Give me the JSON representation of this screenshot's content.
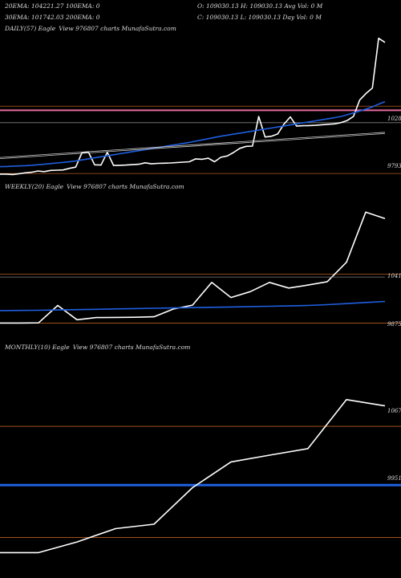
{
  "header": {
    "row1_left": "20EMA: 104221.27 100EMA: 0",
    "row1_right": "O: 109030.13 H: 109030.13 Avg Vol: 0  M",
    "row2_left": "30EMA: 101742.03 200EMA: 0",
    "row2_right": "C: 109030.13 L: 109030.13 Day Vol: 0  M"
  },
  "colors": {
    "background": "#000000",
    "price": "#ffffff",
    "ema_blue": "#1f5fe0",
    "ema_white": "#c8c8c8",
    "level_line": "#b85c1e",
    "pink_line": "#e86aa0",
    "gray_line": "#808080"
  },
  "chart_data": [
    {
      "type": "line",
      "panel": "daily",
      "label": "DAILY(57) Eagle",
      "label_extra": "View  976807 charts MunafaSutra.com",
      "y_tick_labels": [
        "1028",
        "9793"
      ],
      "series": [
        {
          "role": "price",
          "values": [
            97900,
            97900,
            97880,
            97920,
            97960,
            97990,
            98050,
            98020,
            98080,
            98090,
            98100,
            98180,
            98240,
            98950,
            98970,
            98350,
            98340,
            98960,
            98320,
            98330,
            98340,
            98360,
            98380,
            98450,
            98400,
            98420,
            98430,
            98440,
            98460,
            98480,
            98500,
            98640,
            98620,
            98670,
            98500,
            98720,
            98780,
            98950,
            99150,
            99250,
            99260,
            100700,
            99700,
            99740,
            99850,
            100330,
            100680,
            100230,
            100250,
            100260,
            100270,
            100300,
            100320,
            100340,
            100400,
            100500,
            100700,
            101500,
            101820,
            102080,
            104500,
            104300
          ]
        },
        {
          "role": "ema_blue",
          "values": [
            98260,
            98270,
            98280,
            98295,
            98310,
            98330,
            98355,
            98380,
            98410,
            98440,
            98470,
            98505,
            98540,
            98590,
            98640,
            98690,
            98740,
            98790,
            98840,
            98890,
            98940,
            98990,
            99040,
            99090,
            99140,
            99190,
            99240,
            99290,
            99340,
            99390,
            99440,
            99500,
            99560,
            99620,
            99680,
            99740,
            99790,
            99840,
            99890,
            99940,
            99990,
            100040,
            100090,
            100140,
            100190,
            100240,
            100290,
            100340,
            100390,
            100440,
            100490,
            100540,
            100590,
            100640,
            100700,
            100780,
            100870,
            100960,
            101060,
            101170,
            101300,
            101420
          ]
        },
        {
          "role": "ema_white_1",
          "values": [
            98710,
            98730,
            98750,
            98770,
            98790,
            98810,
            98830,
            98850,
            98870,
            98890,
            98910,
            98930,
            98950,
            98970,
            98990,
            99010,
            99030,
            99050,
            99070,
            99090,
            99110,
            99130,
            99150,
            99170,
            99190,
            99210,
            99230,
            99250,
            99270,
            99290,
            99310,
            99330,
            99350,
            99370,
            99390,
            99410,
            99430,
            99450,
            99470,
            99490,
            99510,
            99530,
            99550,
            99570,
            99590,
            99610,
            99630,
            99650,
            99670,
            99690,
            99710,
            99730,
            99750,
            99770,
            99790,
            99810,
            99830,
            99850,
            99870,
            99890,
            99910,
            99930
          ]
        },
        {
          "role": "ema_white_2",
          "values": [
            98650,
            98670,
            98690,
            98710,
            98730,
            98750,
            98770,
            98790,
            98810,
            98830,
            98850,
            98870,
            98890,
            98910,
            98930,
            98950,
            98970,
            98990,
            99010,
            99030,
            99050,
            99070,
            99090,
            99110,
            99130,
            99150,
            99170,
            99190,
            99210,
            99230,
            99250,
            99270,
            99290,
            99310,
            99330,
            99350,
            99370,
            99390,
            99410,
            99430,
            99450,
            99470,
            99490,
            99510,
            99530,
            99550,
            99570,
            99590,
            99610,
            99630,
            99650,
            99670,
            99690,
            99710,
            99730,
            99750,
            99770,
            99790,
            99810,
            99830,
            99850,
            99870
          ]
        }
      ],
      "h_lines": [
        {
          "role": "pink_line",
          "value": 101000
        },
        {
          "role": "level_line",
          "value": 101200
        },
        {
          "role": "gray_line",
          "value": 100400
        },
        {
          "role": "level_line",
          "value": 97930
        }
      ],
      "ylim": [
        97700,
        104800
      ]
    },
    {
      "type": "line",
      "panel": "weekly",
      "label": "WEEKLY(20) Eagle",
      "label_extra": "View  976807 charts MunafaSutra.com",
      "y_tick_labels": [
        "1041",
        "9875"
      ],
      "series": [
        {
          "role": "price",
          "values": [
            98750,
            98750,
            98760,
            99810,
            98950,
            99080,
            99090,
            99100,
            99130,
            99590,
            99830,
            101200,
            100290,
            100640,
            101200,
            100860,
            101040,
            101240,
            102410,
            105430,
            105040
          ]
        },
        {
          "role": "ema_blue",
          "values": [
            99500,
            99510,
            99520,
            99540,
            99560,
            99580,
            99600,
            99620,
            99640,
            99660,
            99680,
            99700,
            99720,
            99740,
            99760,
            99780,
            99810,
            99860,
            99920,
            99990,
            100050
          ]
        },
        {
          "role": "gray_line",
          "values": [
            101520,
            101520,
            101520,
            101520,
            101520,
            101520,
            101520,
            101520,
            101520,
            101520,
            101520,
            101520,
            101520,
            101520,
            101520,
            101520,
            101520,
            101520,
            101520,
            101520,
            101520
          ]
        }
      ],
      "h_lines": [
        {
          "role": "level_line",
          "value": 101700
        },
        {
          "role": "level_line",
          "value": 98750
        }
      ],
      "ylim": [
        97900,
        106700
      ]
    },
    {
      "type": "line",
      "panel": "monthly",
      "label": "MONTHLY(10) Eagle",
      "label_extra": "View  976807 charts MunafaSutra.com",
      "y_tick_labels": [
        "1067",
        "9951"
      ],
      "series": [
        {
          "role": "price",
          "values": [
            96200,
            96200,
            96800,
            97550,
            97800,
            99850,
            101300,
            101680,
            102050,
            104800,
            104450
          ]
        }
      ],
      "h_lines": [
        {
          "role": "level_line",
          "value": 103300
        },
        {
          "role": "ema_blue",
          "value": 100000
        },
        {
          "role": "level_line",
          "value": 97050
        }
      ],
      "ylim": [
        95000,
        107500
      ]
    }
  ]
}
